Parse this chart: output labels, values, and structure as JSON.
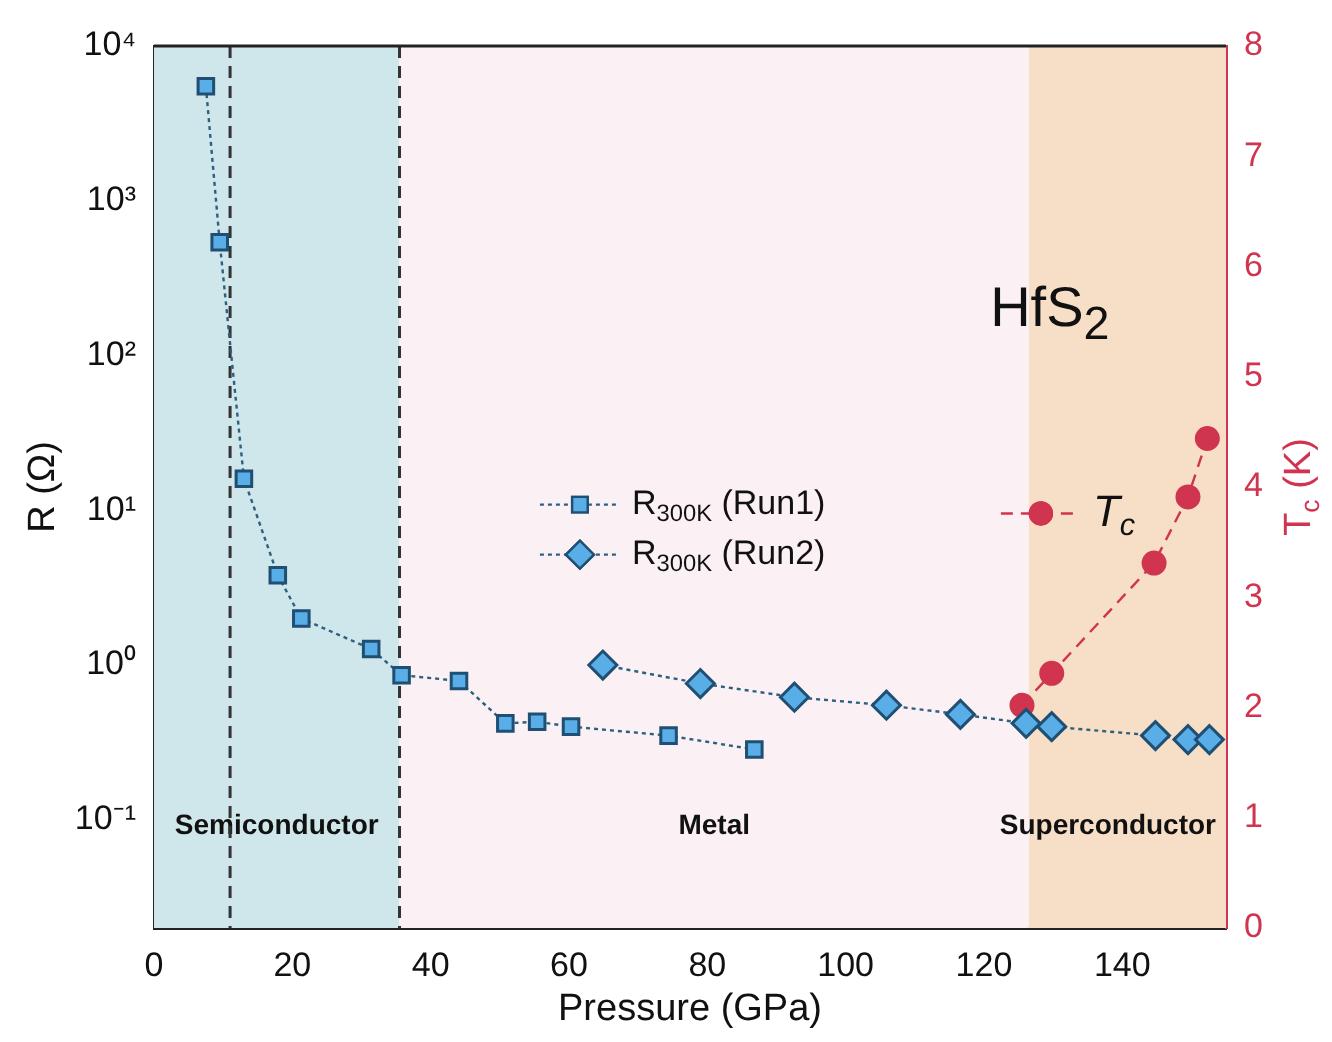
{
  "chart_data": {
    "type": "line",
    "title": "HfS$_{2}$",
    "xlabel": "Pressure (GPa)",
    "ylabel": "R (Ω)",
    "y2label": "T$_{c}$ (K)",
    "log": "y",
    "grid": false,
    "legend": "center",
    "xlim": [
      0,
      155
    ],
    "xticks": [
      0,
      20,
      40,
      60,
      80,
      100,
      120,
      140
    ],
    "ylim": [
      0.02,
      10000
    ],
    "yticks": [
      {
        "value": 0.1,
        "label": "10⁻¹"
      },
      {
        "value": 1,
        "label": "10⁰"
      },
      {
        "value": 10,
        "label": "10¹"
      },
      {
        "value": 100,
        "label": "10²"
      },
      {
        "value": 1000,
        "label": "10³"
      },
      {
        "value": 10000,
        "label": "10⁴"
      }
    ],
    "y2lim": [
      0,
      8
    ],
    "y2ticks": [
      0,
      1,
      2,
      3,
      4,
      5,
      6,
      7,
      8
    ],
    "series": [
      {
        "name": "R$_{300K}$ (Run1)",
        "color": "#5aaee8",
        "marker": "square",
        "line_style": "dotted",
        "x": [
          7.5,
          9.5,
          13,
          17.9,
          21.3,
          31.4,
          35.8,
          44.1,
          50.8,
          55.4,
          60.3,
          74.4,
          86.8
        ],
        "values": [
          5500,
          540,
          16,
          3.8,
          2.0,
          1.27,
          0.86,
          0.79,
          0.42,
          0.43,
          0.4,
          0.35,
          0.285
        ]
      },
      {
        "name": "R$_{300K}$ (Run2)",
        "color": "#5aaee8",
        "marker": "diamond",
        "line_style": "dotted",
        "x": [
          64.9,
          79,
          92.6,
          105.9,
          116.6,
          126.1,
          129.8,
          144.8,
          149.5,
          152.6
        ],
        "values": [
          1.0,
          0.76,
          0.62,
          0.55,
          0.48,
          0.42,
          0.4,
          0.35,
          0.33,
          0.33
        ]
      },
      {
        "name": "T$_{c}$",
        "color": "#d0344f",
        "marker": "circle",
        "line_style": "dashed",
        "axis": "y2",
        "x": [
          125.5,
          129.8,
          144.6,
          149.5,
          152.3
        ],
        "values": [
          2.02,
          2.31,
          3.31,
          3.91,
          4.44
        ]
      }
    ],
    "ref_lines": [
      {
        "axis": "x",
        "value": 11,
        "color": "#333333",
        "line_style": "dashed"
      },
      {
        "axis": "x",
        "value": 35.5,
        "color": "#333333",
        "line_style": "dashed"
      }
    ],
    "bands": [
      {
        "axis": "x",
        "from": 0,
        "to": 35.5,
        "label": "Semiconductor",
        "color": "#cfe6ea"
      },
      {
        "axis": "x",
        "from": 35.5,
        "to": 126.5,
        "label": "Metal",
        "color": "#fbf1f4"
      },
      {
        "axis": "x",
        "from": 126.5,
        "to": 155,
        "label": "Superconductor",
        "color": "#f6dfc6"
      }
    ]
  }
}
